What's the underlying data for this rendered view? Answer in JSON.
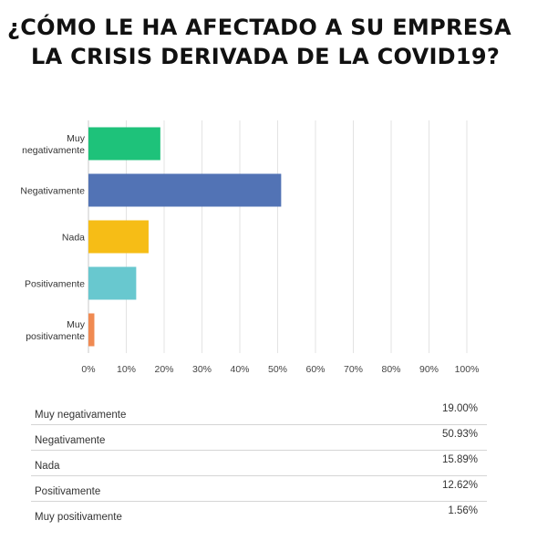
{
  "page": {
    "title_line1": "¿CÓMO LE HA AFECTADO A SU EMPRESA",
    "title_line2": "LA CRISIS DERIVADA DE LA COVID19?"
  },
  "chart_data": {
    "type": "bar",
    "orientation": "horizontal",
    "categories": [
      [
        "Muy",
        "negativamente"
      ],
      [
        "Negativamente"
      ],
      [
        "Nada"
      ],
      [
        "Positivamente"
      ],
      [
        "Muy",
        "positivamente"
      ]
    ],
    "values": [
      19.0,
      50.93,
      15.89,
      12.62,
      1.56
    ],
    "colors": [
      "#1ec27a",
      "#5273b5",
      "#f6bd16",
      "#68c8cf",
      "#f08a52"
    ],
    "xlim": [
      0,
      100
    ],
    "xticks": [
      "0%",
      "10%",
      "20%",
      "30%",
      "40%",
      "50%",
      "60%",
      "70%",
      "80%",
      "90%",
      "100%"
    ],
    "grid": true
  },
  "table": {
    "rows": [
      {
        "label": "Muy negativamente",
        "value": "19.00%"
      },
      {
        "label": "Negativamente",
        "value": "50.93%"
      },
      {
        "label": "Nada",
        "value": "15.89%"
      },
      {
        "label": "Positivamente",
        "value": "12.62%"
      },
      {
        "label": "Muy positivamente",
        "value": "1.56%"
      }
    ]
  }
}
